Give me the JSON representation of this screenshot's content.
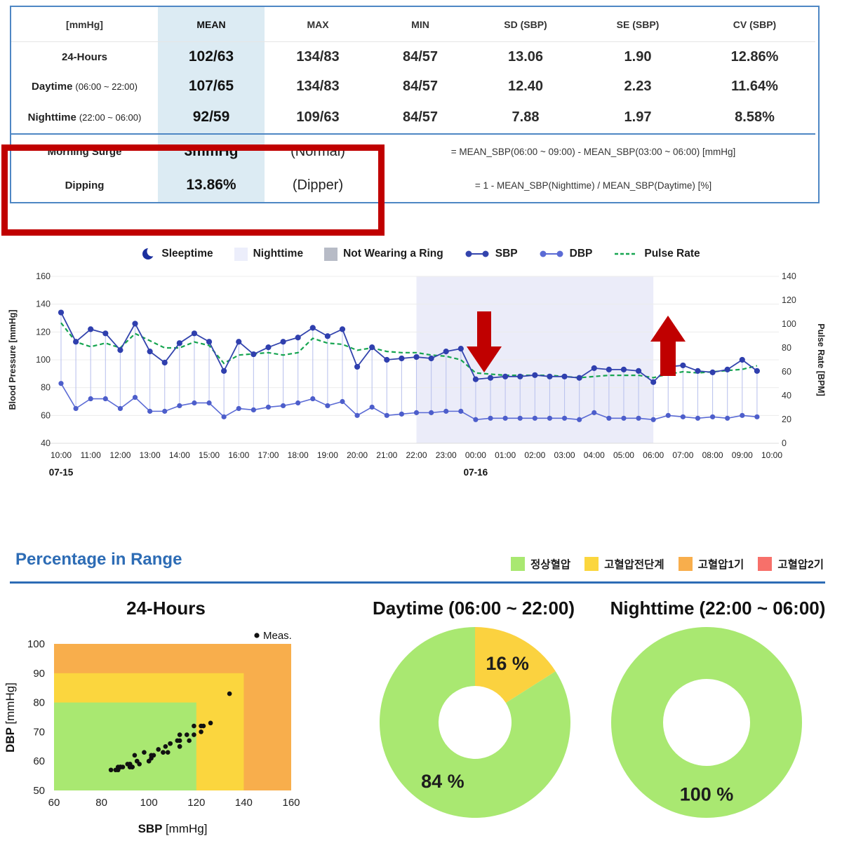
{
  "report_table": {
    "unit_header": "[mmHg]",
    "columns": [
      "MEAN",
      "MAX",
      "MIN",
      "SD (SBP)",
      "SE (SBP)",
      "CV (SBP)"
    ],
    "rows": [
      {
        "label": "24-Hours",
        "note": "",
        "mean": "102/63",
        "max": "134/83",
        "min": "84/57",
        "sd": "13.06",
        "se": "1.90",
        "cv": "12.86%"
      },
      {
        "label": "Daytime",
        "note": "(06:00 ~ 22:00)",
        "mean": "107/65",
        "max": "134/83",
        "min": "84/57",
        "sd": "12.40",
        "se": "2.23",
        "cv": "11.64%"
      },
      {
        "label": "Nighttime",
        "note": "(22:00 ~ 06:00)",
        "mean": "92/59",
        "max": "109/63",
        "min": "84/57",
        "sd": "7.88",
        "se": "1.97",
        "cv": "8.58%"
      }
    ],
    "surge_rows": [
      {
        "label": "Morning Surge",
        "value": "3mmHg",
        "status": "(Normal)",
        "formula": "= MEAN_SBP(06:00 ~ 09:00) - MEAN_SBP(03:00 ~ 06:00) [mmHg]"
      },
      {
        "label": "Dipping",
        "value": "13.86%",
        "status": "(Dipper)",
        "formula": "= 1 - MEAN_SBP(Nighttime) / MEAN_SBP(Daytime) [%]"
      }
    ]
  },
  "ts_legend": [
    {
      "type": "moon",
      "color": "#1b2f9e",
      "label": "Sleeptime"
    },
    {
      "type": "square",
      "color": "#eceefb",
      "label": "Nighttime"
    },
    {
      "type": "square",
      "color": "#b7bbc6",
      "label": "Not Wearing a Ring"
    },
    {
      "type": "marker",
      "color": "#3344ad",
      "label": "SBP"
    },
    {
      "type": "marker",
      "color": "#5b6bd5",
      "label": "DBP"
    },
    {
      "type": "dash",
      "color": "#17a551",
      "label": "Pulse Rate"
    }
  ],
  "range_section": {
    "heading": "Percentage in Range",
    "legend": [
      {
        "label": "정상혈압",
        "color": "#a9e871"
      },
      {
        "label": "고혈압전단계",
        "color": "#fbd63e"
      },
      {
        "label": "고혈압1기",
        "color": "#f8ae4c"
      },
      {
        "label": "고혈압2기",
        "color": "#f7706a"
      }
    ],
    "titles": [
      {
        "name": "24-Hours",
        "time": ""
      },
      {
        "name": "Daytime",
        "time": "(06:00 ~ 22:00)"
      },
      {
        "name": "Nighttime",
        "time": "(22:00 ~ 06:00)"
      }
    ]
  },
  "chart_data": [
    {
      "type": "line",
      "title": "",
      "left_axis": {
        "label": "Blood Pressure [mmHg]",
        "min": 40,
        "max": 160,
        "ticks": [
          160,
          140,
          120,
          100,
          80,
          60,
          40
        ]
      },
      "right_axis": {
        "label": "Pulse Rate [BPM]",
        "min": 0,
        "max": 140,
        "ticks": [
          140,
          120,
          100,
          80,
          60,
          40,
          20,
          0
        ]
      },
      "x_tick_labels": [
        "10:00",
        "11:00",
        "12:00",
        "13:00",
        "14:00",
        "15:00",
        "16:00",
        "17:00",
        "18:00",
        "19:00",
        "20:00",
        "21:00",
        "22:00",
        "23:00",
        "00:00",
        "01:00",
        "02:00",
        "03:00",
        "04:00",
        "05:00",
        "06:00",
        "07:00",
        "08:00",
        "09:00",
        "10:00"
      ],
      "date_labels": [
        {
          "text": "07-15",
          "tick": "10:00"
        },
        {
          "text": "07-16",
          "tick": "00:00"
        }
      ],
      "night_shading": {
        "from": "22:00",
        "to": "06:00",
        "color": "#ebecf9"
      },
      "annotations": [
        {
          "shape": "arrow-down",
          "color": "#c00000",
          "near_time": "00:15"
        },
        {
          "shape": "arrow-up",
          "color": "#c00000",
          "near_time": "06:30"
        }
      ],
      "times": [
        "10:00",
        "10:30",
        "11:00",
        "11:30",
        "12:00",
        "12:30",
        "13:00",
        "13:30",
        "14:00",
        "14:30",
        "15:00",
        "15:30",
        "16:00",
        "16:30",
        "17:00",
        "17:30",
        "18:00",
        "18:30",
        "19:00",
        "19:30",
        "20:00",
        "20:30",
        "21:00",
        "21:30",
        "22:00",
        "22:30",
        "23:00",
        "23:30",
        "00:00",
        "00:30",
        "01:00",
        "01:30",
        "02:00",
        "02:30",
        "03:00",
        "03:30",
        "04:00",
        "04:30",
        "05:00",
        "05:30",
        "06:00",
        "06:30",
        "07:00",
        "07:30",
        "08:00",
        "08:30",
        "09:00",
        "09:30"
      ],
      "series": [
        {
          "name": "SBP",
          "axis": "left",
          "color": "#3344ad",
          "values": [
            134,
            113,
            122,
            119,
            107,
            126,
            106,
            98,
            112,
            119,
            113,
            92,
            113,
            104,
            109,
            113,
            116,
            123,
            117,
            122,
            95,
            109,
            100,
            101,
            102,
            101,
            106,
            108,
            86,
            87,
            88,
            88,
            89,
            88,
            88,
            87,
            94,
            93,
            93,
            92,
            84,
            95,
            96,
            92,
            91,
            93,
            100,
            92
          ]
        },
        {
          "name": "DBP",
          "axis": "left",
          "color": "#5b6bd5",
          "values": [
            83,
            65,
            72,
            72,
            65,
            73,
            63,
            63,
            67,
            69,
            69,
            59,
            65,
            64,
            66,
            67,
            69,
            72,
            67,
            70,
            60,
            66,
            60,
            61,
            62,
            62,
            63,
            63,
            57,
            58,
            58,
            58,
            58,
            58,
            58,
            57,
            62,
            58,
            58,
            58,
            57,
            60,
            59,
            58,
            59,
            58,
            60,
            59
          ]
        },
        {
          "name": "Pulse Rate",
          "axis": "right",
          "color": "#17a551",
          "style": "dashed",
          "values": [
            101,
            85,
            81,
            84,
            80,
            92,
            86,
            80,
            80,
            85,
            82,
            67,
            74,
            75,
            76,
            74,
            76,
            88,
            84,
            83,
            78,
            80,
            77,
            76,
            76,
            74,
            73,
            70,
            59,
            58,
            57,
            57,
            57,
            57,
            56,
            55,
            56,
            57,
            57,
            57,
            55,
            58,
            60,
            59,
            60,
            61,
            62,
            65
          ]
        }
      ]
    },
    {
      "type": "scatter",
      "title": "24-Hours",
      "xlabel": "SBP [mmHg]",
      "ylabel": "DBP [mmHg]",
      "xlim": [
        60,
        160
      ],
      "ylim": [
        50,
        100
      ],
      "x_ticks": [
        60,
        80,
        100,
        120,
        140,
        160
      ],
      "y_ticks": [
        50,
        60,
        70,
        80,
        90,
        100
      ],
      "legend_label": "Meas.",
      "regions": [
        {
          "label": "고혈압1기",
          "color": "#f8ae4c",
          "x": [
            60,
            160
          ],
          "y": [
            50,
            100
          ]
        },
        {
          "label": "고혈압전단계",
          "color": "#fbd63e",
          "x": [
            60,
            140
          ],
          "y": [
            50,
            90
          ]
        },
        {
          "label": "정상혈압",
          "color": "#a9e871",
          "x": [
            60,
            120
          ],
          "y": [
            50,
            80
          ]
        }
      ],
      "points": [
        [
          134,
          83
        ],
        [
          113,
          65
        ],
        [
          122,
          72
        ],
        [
          119,
          72
        ],
        [
          107,
          65
        ],
        [
          126,
          73
        ],
        [
          106,
          63
        ],
        [
          98,
          63
        ],
        [
          112,
          67
        ],
        [
          119,
          69
        ],
        [
          113,
          69
        ],
        [
          92,
          59
        ],
        [
          113,
          65
        ],
        [
          104,
          64
        ],
        [
          109,
          66
        ],
        [
          113,
          67
        ],
        [
          116,
          69
        ],
        [
          123,
          72
        ],
        [
          117,
          67
        ],
        [
          122,
          70
        ],
        [
          95,
          60
        ],
        [
          109,
          66
        ],
        [
          100,
          60
        ],
        [
          101,
          61
        ],
        [
          102,
          62
        ],
        [
          101,
          62
        ],
        [
          106,
          63
        ],
        [
          108,
          63
        ],
        [
          86,
          57
        ],
        [
          87,
          58
        ],
        [
          88,
          58
        ],
        [
          88,
          58
        ],
        [
          89,
          58
        ],
        [
          88,
          58
        ],
        [
          88,
          58
        ],
        [
          87,
          57
        ],
        [
          94,
          62
        ],
        [
          93,
          58
        ],
        [
          93,
          58
        ],
        [
          92,
          58
        ],
        [
          84,
          57
        ],
        [
          95,
          60
        ],
        [
          96,
          59
        ],
        [
          92,
          58
        ],
        [
          91,
          59
        ],
        [
          93,
          58
        ],
        [
          100,
          60
        ],
        [
          92,
          59
        ]
      ]
    },
    {
      "type": "pie",
      "donut": true,
      "title": "Daytime (06:00 ~ 22:00)",
      "slices": [
        {
          "label": "고혈압전단계",
          "text": "16 %",
          "value": 16,
          "color": "#fbd23f"
        },
        {
          "label": "정상혈압",
          "text": "84 %",
          "value": 84,
          "color": "#a9e871"
        }
      ]
    },
    {
      "type": "pie",
      "donut": true,
      "title": "Nighttime (22:00 ~ 06:00)",
      "slices": [
        {
          "label": "정상혈압",
          "text": "100 %",
          "value": 100,
          "color": "#a9e871"
        }
      ]
    }
  ]
}
